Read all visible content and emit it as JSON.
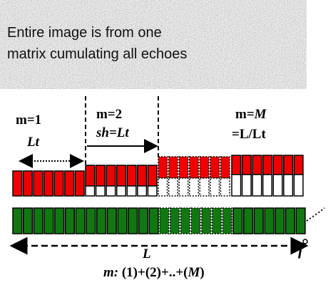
{
  "image_caption": [
    "Entire image is from one",
    "matrix cumulating all echoes"
  ],
  "labels": {
    "m1": "m=1",
    "lt": "Lt",
    "m2": "m=2",
    "shift": "sh=Lt",
    "mM_prefix": "m=",
    "mM_var": "M",
    "ratio": "=L/Lt",
    "length": "L",
    "sum_prefix": "m:",
    "sum_terms": "(1)+(2)+..+(",
    "sum_var": "M",
    "sum_close": ")",
    "f": "f"
  }
}
